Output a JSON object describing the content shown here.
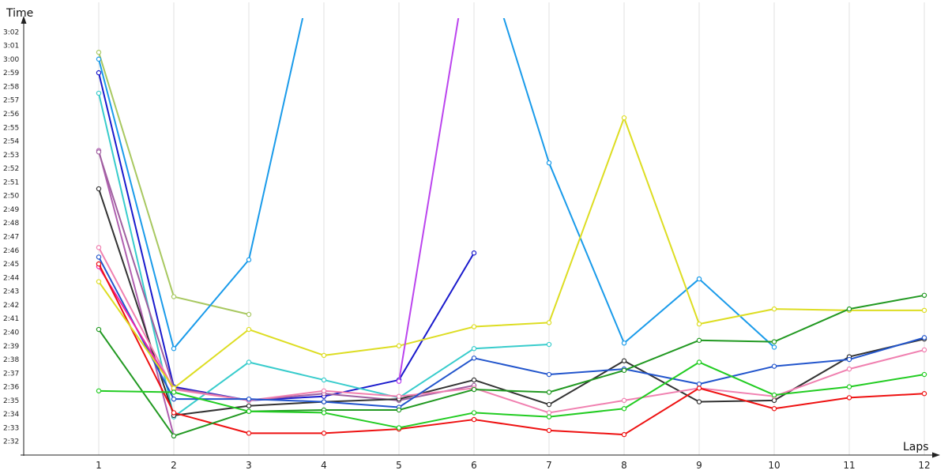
{
  "chart_data": {
    "type": "line",
    "xlabel": "Laps",
    "ylabel": "Time",
    "grid": "vertical",
    "legend": "none",
    "x": [
      1,
      2,
      3,
      4,
      5,
      6,
      7,
      8,
      9,
      10,
      11,
      12
    ],
    "x_tick_labels": [
      "1",
      "2",
      "3",
      "4",
      "5",
      "6",
      "7",
      "8",
      "9",
      "10",
      "11",
      "12"
    ],
    "ylim": [
      "2:31",
      "3:03"
    ],
    "y_tick_labels": [
      "2:32",
      "2:33",
      "2:34",
      "2:35",
      "2:36",
      "2:37",
      "2:38",
      "2:39",
      "2:40",
      "2:41",
      "2:42",
      "2:43",
      "2:44",
      "2:45",
      "2:46",
      "2:47",
      "2:48",
      "2:49",
      "2:50",
      "2:51",
      "2:52",
      "2:53",
      "2:54",
      "2:55",
      "2:56",
      "2:57",
      "2:58",
      "2:59",
      "3:00",
      "3:01",
      "3:02"
    ],
    "series": [
      {
        "color": "#a8c860",
        "values": [
          "3:00.5",
          "2:42.6",
          "2:41.3",
          null,
          null,
          null,
          null,
          null,
          null,
          null,
          null,
          null
        ]
      },
      {
        "color": "#1a9bea",
        "values": [
          "3:00.0",
          "2:38.8",
          "2:45.3",
          "3:10",
          null,
          "3:10",
          "2:52.4",
          "2:39.2",
          "2:43.9",
          "2:38.9",
          null,
          null
        ]
      },
      {
        "color": "#1a1acc",
        "values": [
          "2:59.0",
          "2:36.0",
          "2:35.0",
          "2:35.3",
          "2:36.5",
          "2:45.8",
          null,
          null,
          null,
          null,
          null,
          null
        ]
      },
      {
        "color": "#38cccc",
        "values": [
          "2:57.5",
          "2:33.8",
          "2:37.8",
          "2:36.5",
          "2:35.2",
          "2:38.8",
          "2:39.1",
          null,
          null,
          null,
          null,
          null
        ]
      },
      {
        "color": "#b060b0",
        "values": [
          "2:53.3",
          "2:32.4",
          null,
          null,
          null,
          null,
          null,
          null,
          null,
          null,
          null,
          null
        ]
      },
      {
        "color": "#a060a0",
        "values": [
          "2:53.2",
          "2:35.9",
          "2:35.0",
          "2:35.5",
          "2:35.0",
          "2:36.1",
          null,
          null,
          null,
          null,
          null,
          null
        ]
      },
      {
        "color": "#333333",
        "values": [
          "2:50.5",
          "2:33.9",
          "2:34.6",
          "2:34.9",
          "2:35.1",
          "2:36.5",
          "2:34.7",
          "2:37.9",
          "2:34.9",
          "2:35.0",
          "2:38.2",
          "2:39.5"
        ]
      },
      {
        "color": "#f080b0",
        "values": [
          "2:46.2",
          "2:35.8",
          "2:35.0",
          "2:35.7",
          "2:35.3",
          "2:35.9",
          "2:34.1",
          "2:35.0",
          "2:35.9",
          "2:35.3",
          "2:37.3",
          "2:38.7"
        ]
      },
      {
        "color": "#2255cc",
        "values": [
          "2:45.5",
          "2:35.1",
          "2:35.1",
          "2:34.9",
          "2:34.5",
          "2:38.1",
          "2:36.9",
          "2:37.3",
          "2:36.2",
          "2:37.5",
          "2:38.0",
          "2:39.6"
        ]
      },
      {
        "color": "#ee22aa",
        "values": [
          "2:44.8",
          "2:35.8",
          null,
          null,
          null,
          null,
          null,
          null,
          null,
          null,
          null,
          null
        ]
      },
      {
        "color": "#ee1111",
        "values": [
          "2:45.0",
          "2:34.1",
          "2:32.6",
          "2:32.6",
          "2:32.9",
          "2:33.6",
          "2:32.8",
          "2:32.5",
          "2:35.9",
          "2:34.4",
          "2:35.2",
          "2:35.5"
        ]
      },
      {
        "color": "#dddd22",
        "values": [
          "2:43.7",
          "2:35.9",
          "2:40.2",
          "2:38.3",
          "2:39.0",
          "2:40.4",
          "2:40.7",
          "2:55.7",
          "2:40.6",
          "2:41.7",
          "2:41.6",
          "2:41.6"
        ]
      },
      {
        "color": "#229922",
        "values": [
          "2:40.2",
          "2:32.4",
          "2:34.2",
          "2:34.3",
          "2:34.3",
          "2:35.8",
          "2:35.6",
          "2:37.2",
          "2:39.4",
          "2:39.3",
          "2:41.7",
          "2:42.7"
        ]
      },
      {
        "color": "#22cc22",
        "values": [
          "2:35.7",
          "2:35.6",
          "2:34.2",
          "2:34.1",
          "2:33.0",
          "2:34.1",
          "2:33.8",
          "2:34.4",
          "2:37.8",
          "2:35.4",
          "2:36.0",
          "2:36.9"
        ]
      },
      {
        "color": "#bb44ee",
        "values": [
          null,
          null,
          null,
          null,
          "2:36.4",
          "3:10",
          null,
          null,
          null,
          null,
          null,
          null
        ]
      }
    ]
  }
}
